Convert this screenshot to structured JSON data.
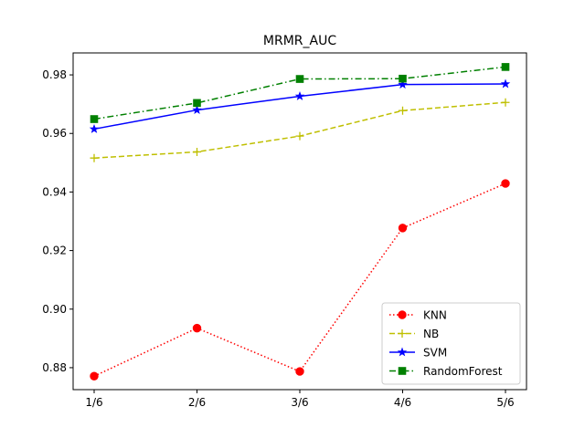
{
  "chart_data": {
    "type": "line",
    "title": "MRMR_AUC",
    "xlabel": "",
    "ylabel": "",
    "categories": [
      "1/6",
      "2/6",
      "3/6",
      "4/6",
      "5/6"
    ],
    "ylim": [
      0.8725,
      0.9875
    ],
    "yticks": [
      0.88,
      0.9,
      0.92,
      0.94,
      0.96,
      0.98
    ],
    "ytick_labels": [
      "0.88",
      "0.90",
      "0.92",
      "0.94",
      "0.96",
      "0.98"
    ],
    "grid": false,
    "legend_position": "lower right",
    "series": [
      {
        "name": "KNN",
        "values": [
          0.8771,
          0.8935,
          0.8787,
          0.9277,
          0.9429
        ],
        "color": "#ff0000",
        "linestyle": "dotted",
        "marker": "circle"
      },
      {
        "name": "NB",
        "values": [
          0.9516,
          0.9537,
          0.9591,
          0.9678,
          0.9706
        ],
        "color": "#bfbf00",
        "linestyle": "dashed",
        "marker": "plus"
      },
      {
        "name": "SVM",
        "values": [
          0.9615,
          0.968,
          0.9727,
          0.9767,
          0.9769
        ],
        "color": "#0000ff",
        "linestyle": "solid",
        "marker": "star"
      },
      {
        "name": "RandomForest",
        "values": [
          0.9649,
          0.9704,
          0.9786,
          0.9787,
          0.9827
        ],
        "color": "#008000",
        "linestyle": "dashdot",
        "marker": "square"
      }
    ]
  }
}
